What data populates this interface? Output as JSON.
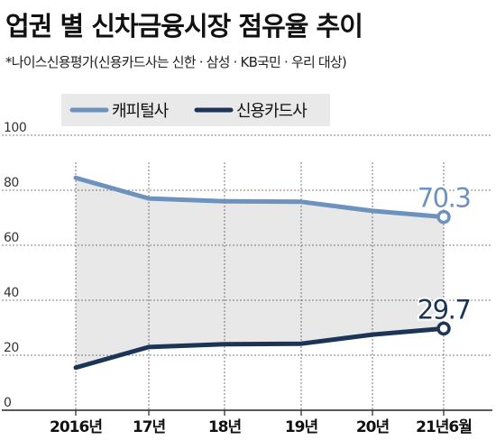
{
  "title": "업권 별 신차금융시장 점유율 추이",
  "subtitle": "*나이스신용평가(신용카드사는 신한 · 삼성 · KB국민 · 우리 대상)",
  "colors": {
    "capital": "#6d92bd",
    "card": "#1c3557",
    "area": "#e8e8e8",
    "legend_bg": "#e9e9e9"
  },
  "chart_data": {
    "type": "line",
    "categories": [
      "2016년",
      "17년",
      "18년",
      "19년",
      "20년",
      "21년6월"
    ],
    "ylim": [
      0,
      100
    ],
    "yticks": [
      "0",
      "20",
      "40",
      "60",
      "80",
      "100"
    ],
    "grid": true,
    "legend": "top-center",
    "series": [
      {
        "name": "캐피털사",
        "values": [
          84.5,
          77,
          76,
          75.8,
          72.5,
          70.3
        ],
        "end_label": "70.3"
      },
      {
        "name": "신용카드사",
        "values": [
          15.5,
          23,
          24,
          24.2,
          27.5,
          29.7
        ],
        "end_label": "29.7"
      }
    ]
  }
}
